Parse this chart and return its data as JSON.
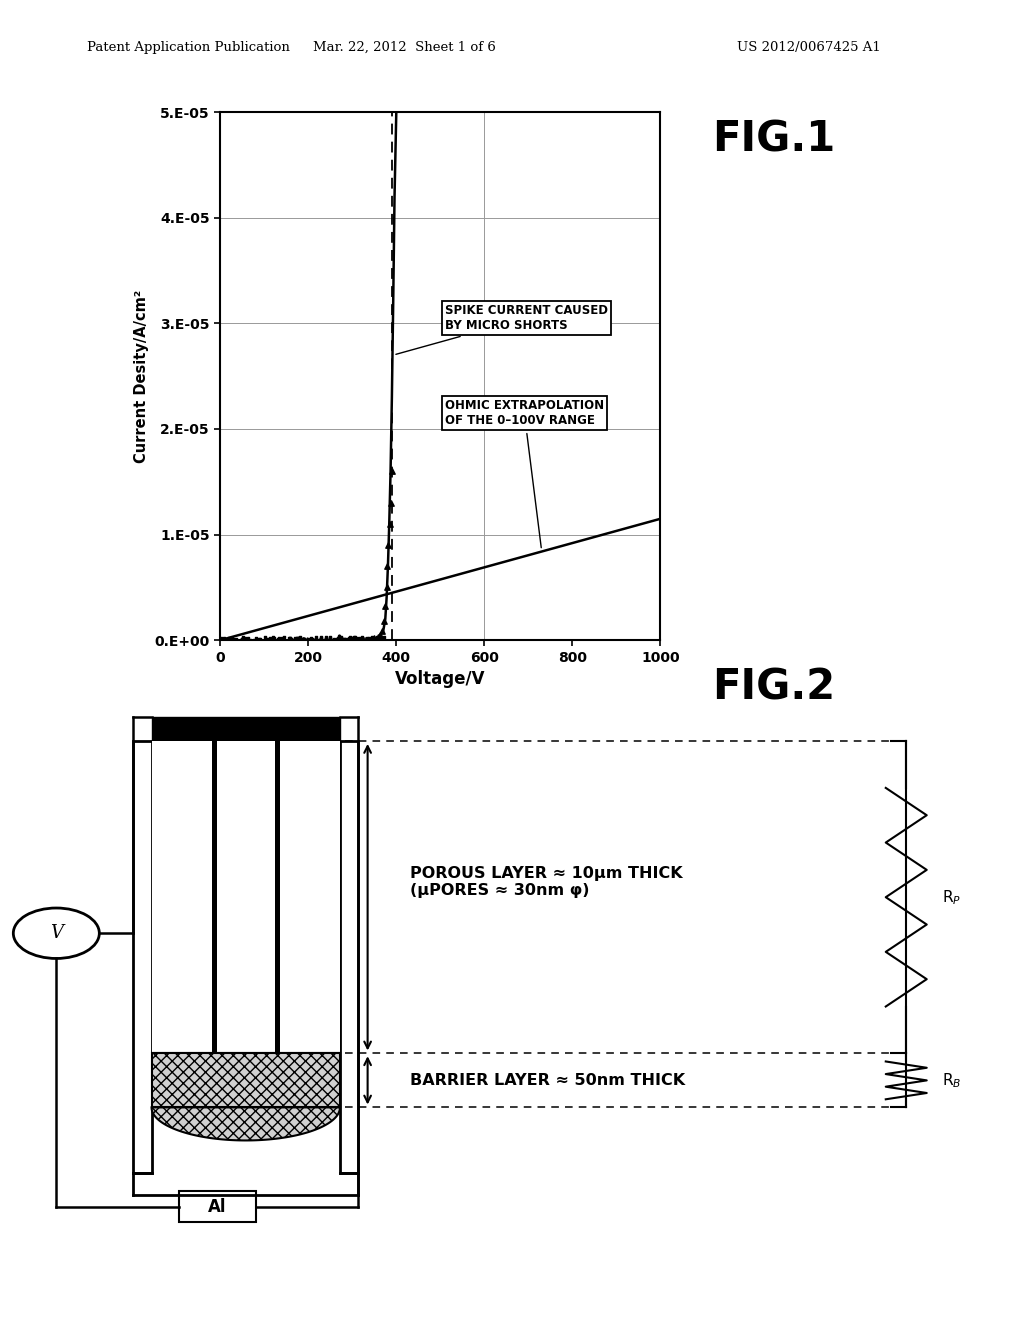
{
  "header_left": "Patent Application Publication",
  "header_center": "Mar. 22, 2012  Sheet 1 of 6",
  "header_right": "US 2012/0067425 A1",
  "fig1_label": "FIG.1",
  "fig2_label": "FIG.2",
  "xlabel": "Voltage/V",
  "ylabel": "Current Desity/A/cm²",
  "yticks": [
    "0.E+00",
    "1.E−05",
    "2.E−05",
    "3.E−05",
    "4.E−05",
    "5.E−05"
  ],
  "ytick_labels": [
    "0.E+00",
    "1.E-05",
    "2.E-05",
    "3.E-05",
    "4.E-05",
    "5.E-05"
  ],
  "xticks": [
    0,
    200,
    400,
    600,
    800,
    1000
  ],
  "xmin": 0,
  "xmax": 1000,
  "ymin": 0.0,
  "ymax": 5e-05,
  "annotation1": "SPIKE CURRENT CAUSED\nBY MICRO SHORTS",
  "annotation2": "OHMIC EXTRAPOLATION\nOF THE 0–100V RANGE",
  "porous_label": "POROUS LAYER ≈ 10μm THICK\n(μPORES ≈ 30nm φ)",
  "barrier_label": "BARRIER LAYER ≈ 50nm THICK",
  "bg_color": "#ffffff",
  "plot_bg": "#ffffff"
}
